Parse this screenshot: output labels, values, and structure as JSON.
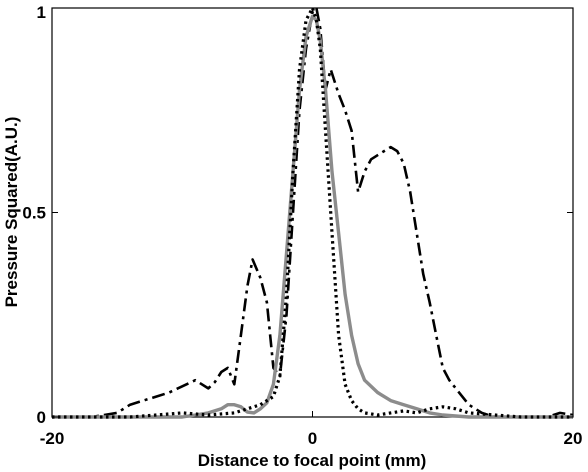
{
  "chart_data": {
    "type": "line",
    "title": "",
    "xlabel": "Distance to focal point (mm)",
    "ylabel": "Pressure Squared(A.U.)",
    "xlim": [
      -20,
      20
    ],
    "ylim": [
      0,
      1
    ],
    "xticks": [
      -20,
      0,
      20
    ],
    "xtick_labels": [
      "-20",
      "0",
      "20"
    ],
    "yticks": [
      0,
      0.5,
      1
    ],
    "ytick_labels": [
      "0",
      "0.5",
      "1"
    ],
    "grid": false,
    "legend": "none",
    "series": [
      {
        "style": "dashdot",
        "color": "#000000",
        "x": [
          -20,
          -17,
          -16,
          -15,
          -14,
          -12,
          -11,
          -10,
          -9,
          -8,
          -7.5,
          -7,
          -6.5,
          -6,
          -5.5,
          -5,
          -4.6,
          -4,
          -3.5,
          -3,
          -2.5,
          -2,
          -1.5,
          -1,
          -0.5,
          0,
          0.3,
          0.6,
          1,
          1.4,
          2,
          2.5,
          3,
          3.5,
          4,
          4.5,
          5,
          5.5,
          6,
          6.5,
          7,
          7.5,
          8,
          8.5,
          9,
          9.5,
          10,
          10.5,
          11,
          11.5,
          12,
          12.5,
          13,
          14,
          15,
          16,
          17,
          18,
          19,
          20
        ],
        "y": [
          0.0,
          0.0,
          0.005,
          0.01,
          0.03,
          0.05,
          0.06,
          0.075,
          0.09,
          0.07,
          0.085,
          0.11,
          0.12,
          0.08,
          0.2,
          0.32,
          0.385,
          0.34,
          0.28,
          0.12,
          0.1,
          0.25,
          0.5,
          0.75,
          0.9,
          0.99,
          1.0,
          0.95,
          0.8,
          0.85,
          0.79,
          0.75,
          0.7,
          0.55,
          0.6,
          0.63,
          0.64,
          0.65,
          0.66,
          0.65,
          0.62,
          0.55,
          0.45,
          0.35,
          0.28,
          0.2,
          0.12,
          0.09,
          0.07,
          0.05,
          0.03,
          0.02,
          0.01,
          0.0,
          0.0,
          0.0,
          0.0,
          0.0,
          0.01,
          0.005
        ]
      },
      {
        "style": "solid",
        "color": "#8c8c8c",
        "x": [
          -20,
          -12,
          -10,
          -9,
          -8,
          -7,
          -6.5,
          -6,
          -5.5,
          -5,
          -4.5,
          -4,
          -3.5,
          -3,
          -2.5,
          -2,
          -1.5,
          -1,
          -0.5,
          0,
          0.3,
          0.6,
          1,
          1.5,
          2,
          2.5,
          3,
          3.5,
          4,
          5,
          6,
          7,
          8,
          9,
          10,
          12,
          15,
          20
        ],
        "y": [
          0.0,
          0.0,
          0.0,
          0.005,
          0.01,
          0.02,
          0.03,
          0.03,
          0.025,
          0.012,
          0.01,
          0.02,
          0.035,
          0.08,
          0.2,
          0.4,
          0.6,
          0.8,
          0.93,
          0.98,
          0.97,
          0.92,
          0.8,
          0.6,
          0.45,
          0.3,
          0.2,
          0.13,
          0.09,
          0.06,
          0.04,
          0.03,
          0.02,
          0.01,
          0.005,
          0.0,
          0.0,
          0.0
        ]
      },
      {
        "style": "dotted",
        "color": "#000000",
        "x": [
          -20,
          -14,
          -12,
          -10,
          -8,
          -6,
          -5,
          -4,
          -3.5,
          -3,
          -2.5,
          -2,
          -1.5,
          -1,
          -0.5,
          0,
          0.3,
          0.6,
          1,
          1.5,
          2,
          2.5,
          3,
          3.5,
          4,
          5,
          6,
          7,
          8,
          9,
          10,
          11,
          12,
          14,
          16,
          20
        ],
        "y": [
          0.0,
          0.0,
          0.005,
          0.01,
          0.005,
          0.01,
          0.02,
          0.03,
          0.04,
          0.05,
          0.1,
          0.3,
          0.6,
          0.85,
          0.97,
          1.0,
          0.97,
          0.9,
          0.7,
          0.45,
          0.2,
          0.08,
          0.04,
          0.02,
          0.01,
          0.005,
          0.01,
          0.015,
          0.01,
          0.02,
          0.025,
          0.02,
          0.01,
          0.005,
          0.0,
          0.0
        ]
      }
    ]
  }
}
